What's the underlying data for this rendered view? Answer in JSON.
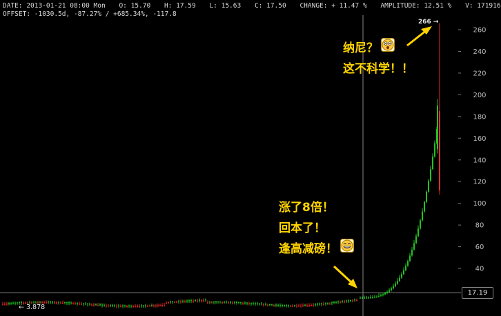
{
  "header": {
    "line1": {
      "date": "DATE: 2013-01-21 08:00 Mon",
      "open": "O: 15.70",
      "high": "H: 17.59",
      "low": "L: 15.63",
      "close": "C: 17.50",
      "change": "CHANGE: + 11.47 %",
      "amplitude": "AMPLITUDE: 12.51 %",
      "volume": "V: 171916"
    },
    "line2": {
      "offset": "OFFSET: -1030.5d, -87.27% / +685.34%, -117.8"
    }
  },
  "annotations": {
    "top": {
      "line1": "纳尼？",
      "line2": "这不科学！！"
    },
    "bottom": {
      "line1": "涨了8倍！",
      "line2": "回本了！",
      "line3": "逢高减磅！"
    },
    "emoji_icon": "laughing-face-icon"
  },
  "labels": {
    "max_label": "266 →",
    "min_label": "← 3.878",
    "current_price": "17.19"
  },
  "colors": {
    "up": "#22c322",
    "down": "#e52a2a",
    "annotation": "#ffd400",
    "axis": "#bdbdbd"
  },
  "chart_data": {
    "type": "candlestick",
    "yaxis": {
      "ticks": [
        40,
        60,
        80,
        100,
        120,
        140,
        160,
        180,
        200,
        220,
        240,
        260
      ],
      "ylim": [
        0,
        268
      ]
    },
    "max_value": 266,
    "min_value": 3.878,
    "current_value": 17.19,
    "crosshair_value": 17.5
  }
}
